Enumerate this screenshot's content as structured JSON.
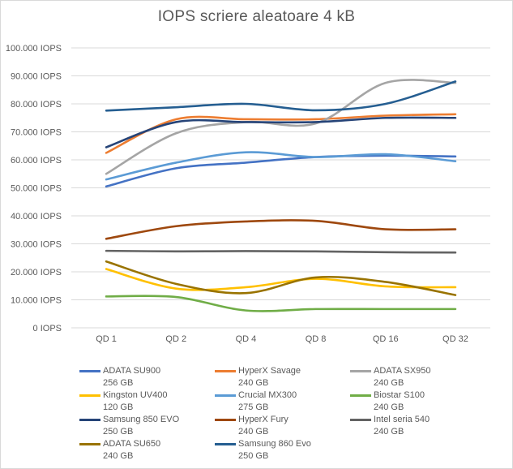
{
  "chart_data": {
    "type": "line",
    "title": "IOPS scriere aleatoare 4 kB",
    "xlabel": "",
    "ylabel": "",
    "categories": [
      "QD 1",
      "QD 2",
      "QD 4",
      "QD 8",
      "QD 16",
      "QD 32"
    ],
    "y_ticks": [
      "0 IOPS",
      "10.000 IOPS",
      "20.000 IOPS",
      "30.000 IOPS",
      "40.000 IOPS",
      "50.000 IOPS",
      "60.000 IOPS",
      "70.000 IOPS",
      "80.000 IOPS",
      "90.000 IOPS",
      "100.000 IOPS"
    ],
    "ylim": [
      0,
      100000
    ],
    "grid": true,
    "legend_position": "bottom",
    "series": [
      {
        "name": "ADATA SU900\n256 GB",
        "color": "#4472c4",
        "values": [
          50500,
          57000,
          59000,
          61000,
          61500,
          61200
        ]
      },
      {
        "name": "HyperX Savage\n240 GB",
        "color": "#ed7d31",
        "values": [
          62500,
          74500,
          74500,
          74500,
          75800,
          76300
        ]
      },
      {
        "name": "ADATA SX950\n240 GB",
        "color": "#a5a5a5",
        "values": [
          55000,
          69500,
          73500,
          73000,
          87500,
          87500
        ]
      },
      {
        "name": "Kingston UV400\n120 GB",
        "color": "#ffc000",
        "values": [
          21000,
          14000,
          14500,
          17500,
          14800,
          14500
        ]
      },
      {
        "name": "Crucial MX300\n275 GB",
        "color": "#5b9bd5",
        "values": [
          53000,
          59000,
          62700,
          61000,
          62000,
          59500
        ]
      },
      {
        "name": "Biostar S100\n240 GB",
        "color": "#70ad47",
        "values": [
          11200,
          11000,
          6200,
          6700,
          6700,
          6700
        ]
      },
      {
        "name": "Samsung 850 EVO\n250 GB",
        "color": "#264478",
        "values": [
          64500,
          73500,
          73500,
          73500,
          75000,
          75000
        ]
      },
      {
        "name": "HyperX Fury\n240 GB",
        "color": "#9e480e",
        "values": [
          31800,
          36300,
          38000,
          38200,
          35200,
          35200
        ]
      },
      {
        "name": "Intel seria 540\n240 GB",
        "color": "#636363",
        "values": [
          27500,
          27300,
          27400,
          27300,
          27000,
          26900
        ]
      },
      {
        "name": "ADATA SU650\n240 GB",
        "color": "#997300",
        "values": [
          23700,
          15700,
          12400,
          18000,
          16400,
          11700
        ]
      },
      {
        "name": "Samsung 860 Evo\n250 GB",
        "color": "#255e91",
        "values": [
          77600,
          78800,
          80000,
          77700,
          80000,
          88000
        ]
      }
    ]
  }
}
